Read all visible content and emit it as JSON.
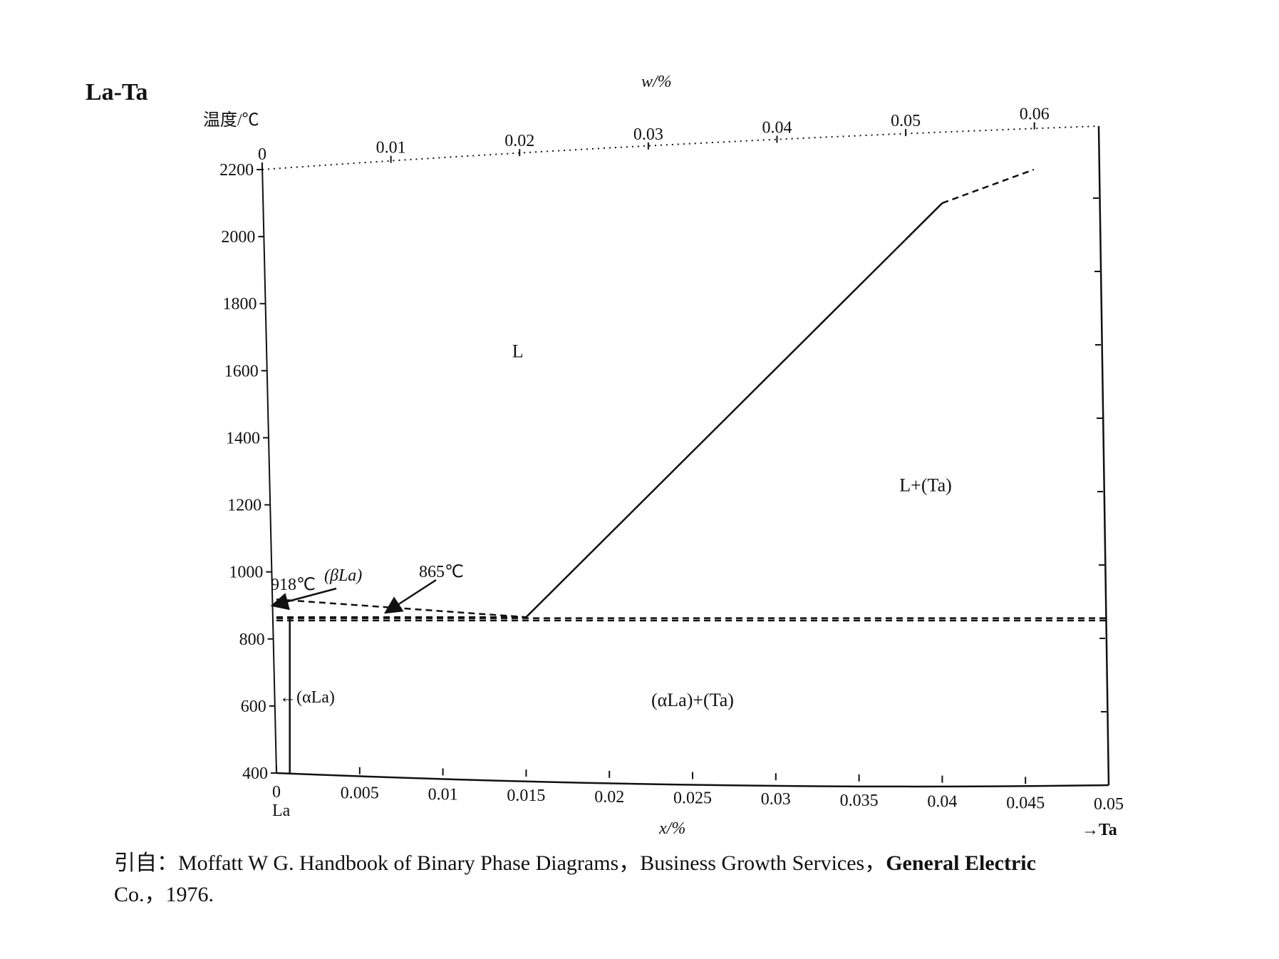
{
  "chart_data": {
    "type": "line",
    "title": "La-Ta",
    "ylabel": "温度/℃",
    "xlabel": "x/%",
    "x2label": "w/%",
    "ylim": [
      400,
      2200
    ],
    "xlim": [
      0,
      0.05
    ],
    "x2lim": [
      0,
      0.065
    ],
    "yticks": [
      2200,
      2000,
      1800,
      1600,
      1400,
      1200,
      1000,
      800,
      600,
      400
    ],
    "xticks": [
      0,
      0.005,
      0.01,
      0.015,
      0.02,
      0.025,
      0.03,
      0.035,
      0.04,
      0.045,
      0.05
    ],
    "xtick_labels": [
      "0",
      "0.005",
      "0.01",
      "0.015",
      "0.02",
      "0.025",
      "0.03",
      "0.035",
      "0.04",
      "0.045",
      "0.05"
    ],
    "x2ticks": [
      0,
      0.01,
      0.02,
      0.03,
      0.04,
      0.05,
      0.06
    ],
    "x2tick_labels": [
      "0",
      "0.01",
      "0.02",
      "0.03",
      "0.04",
      "0.05",
      "0.06"
    ],
    "left_end_label": "La",
    "right_end_label": "→Ta",
    "series": [
      {
        "style": "solid",
        "x": [
          0.015,
          0.04
        ],
        "y": [
          865,
          2100
        ]
      },
      {
        "style": "dashed",
        "x": [
          0.04,
          0.0455
        ],
        "y": [
          2100,
          2200
        ]
      },
      {
        "style": "dashed",
        "x": [
          0,
          0.015
        ],
        "y": [
          918,
          865
        ]
      },
      {
        "style": "dashed",
        "x": [
          0,
          0.015
        ],
        "y": [
          865,
          865
        ]
      },
      {
        "style": "dashed",
        "x": [
          0,
          0.05
        ],
        "y": [
          862,
          862
        ]
      },
      {
        "style": "dashed",
        "x": [
          0,
          0.05
        ],
        "y": [
          855,
          855
        ]
      },
      {
        "style": "solid",
        "x": [
          0.0008,
          0.0008
        ],
        "y": [
          400,
          862
        ]
      }
    ],
    "region_labels": [
      {
        "text": "L",
        "x": 0.0145,
        "y": 1640
      },
      {
        "text": "L+(Ta)",
        "x": 0.039,
        "y": 1240
      },
      {
        "text": "(αLa)+(Ta)",
        "x": 0.025,
        "y": 600
      }
    ],
    "annotations": [
      {
        "text": "918℃",
        "x": 0.0015,
        "y": 945,
        "arrow_to": [
          0,
          918
        ]
      },
      {
        "text": "(βLa)",
        "x": 0.003,
        "y": 960
      },
      {
        "text": "865℃",
        "x": 0.0085,
        "y": 975,
        "arrow_to": [
          0.007,
          865
        ]
      },
      {
        "text": "←(αLa)",
        "x": 0.0008,
        "y": 620
      }
    ]
  },
  "caption": {
    "line1": "引自：Moffatt W G.  Handbook of Binary Phase Diagrams，Business Growth Services，",
    "line1_bold": "General Electric",
    "line2": "Co.，1976."
  }
}
